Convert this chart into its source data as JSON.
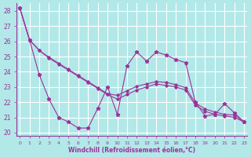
{
  "xlabel": "Windchill (Refroidissement éolien,°C)",
  "background_color": "#b2e8e8",
  "grid_color": "#ffffff",
  "line_color": "#993399",
  "x_ticks": [
    0,
    1,
    2,
    3,
    4,
    5,
    6,
    7,
    8,
    9,
    10,
    11,
    12,
    13,
    14,
    15,
    16,
    17,
    18,
    19,
    20,
    21,
    22,
    23
  ],
  "y_ticks": [
    20,
    21,
    22,
    23,
    24,
    25,
    26,
    27,
    28
  ],
  "ylim": [
    19.8,
    28.5
  ],
  "xlim": [
    -0.3,
    23.3
  ],
  "series_wavy": [
    28.2,
    26.1,
    23.8,
    22.2,
    21.0,
    20.7,
    20.3,
    20.3,
    21.6,
    23.0,
    21.2,
    24.4,
    25.3,
    24.7,
    25.3,
    25.1,
    24.8,
    24.6,
    22.0,
    21.1,
    21.2,
    21.9,
    21.3,
    20.7
  ],
  "series_line1": [
    28.2,
    26.1,
    25.4,
    24.9,
    24.5,
    24.1,
    23.7,
    23.3,
    22.9,
    22.5,
    22.2,
    22.5,
    22.8,
    23.0,
    23.2,
    23.1,
    23.0,
    22.8,
    21.8,
    21.4,
    21.2,
    21.1,
    21.0,
    20.7
  ],
  "series_line2": [
    28.2,
    26.1,
    25.4,
    24.95,
    24.55,
    24.15,
    23.75,
    23.35,
    22.95,
    22.55,
    22.45,
    22.75,
    23.05,
    23.2,
    23.35,
    23.3,
    23.15,
    22.95,
    21.95,
    21.55,
    21.35,
    21.2,
    21.15,
    20.7
  ]
}
